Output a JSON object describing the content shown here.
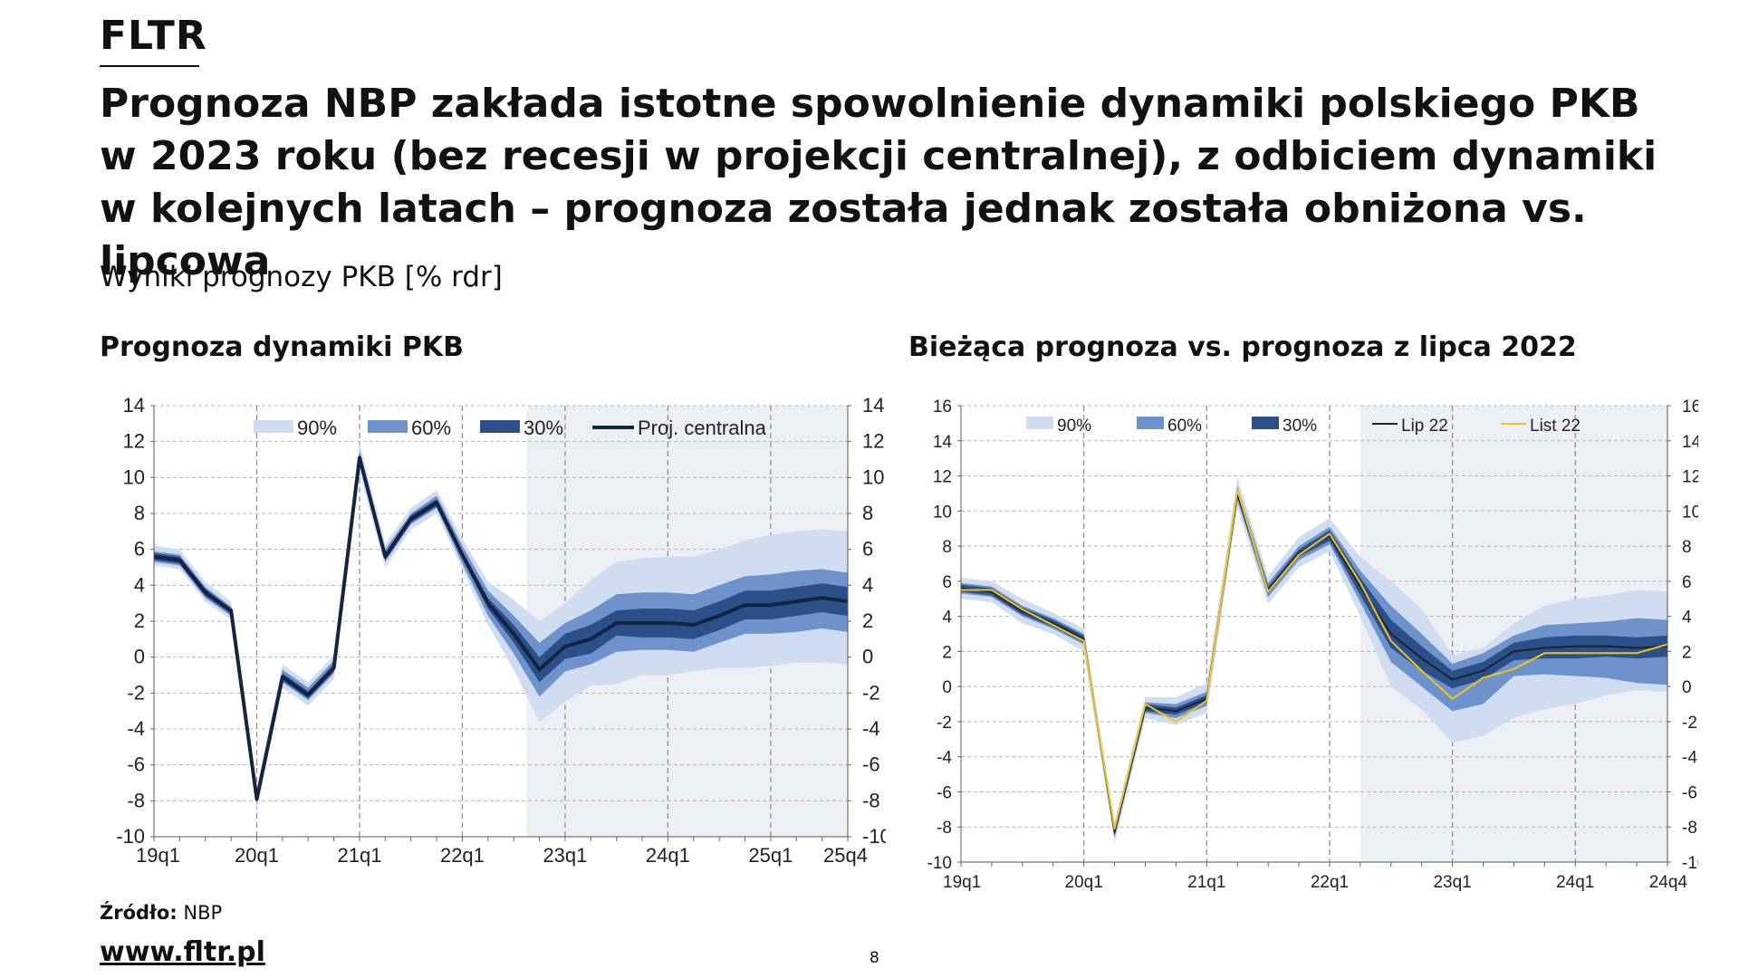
{
  "header": {
    "brand": "FLTR",
    "title": "Prognoza NBP zakłada istotne spowolnienie dynamiki polskiego PKB w 2023 roku (bez recesji w projekcji centralnej), z odbiciem dynamiki w kolejnych latach – prognoza została jednak została obniżona vs. lipcowa",
    "subtitle": "Wyniki prognozy PKB [% rdr]"
  },
  "footer": {
    "source_label": "Źródło:",
    "source_value": "NBP",
    "website": "www.fltr.pl",
    "page_number": "8"
  },
  "colors": {
    "band90": "#d0dcef",
    "band60": "#6e92cc",
    "band30": "#2a4f89",
    "central": "#14233f",
    "lip22": "#1b2233",
    "list22": "#f2c21e",
    "projection_bg": "#eceff3"
  },
  "chart_data": [
    {
      "type": "line",
      "title": "Prognoza dynamiki PKB",
      "xlabel": "",
      "ylabel": "",
      "ylim": [
        -10,
        14
      ],
      "yticks": [
        14,
        12,
        10,
        8,
        6,
        4,
        2,
        0,
        -2,
        -4,
        -6,
        -8,
        -10
      ],
      "x_tick_labels": [
        "19q1",
        "20q1",
        "21q1",
        "22q1",
        "23q1",
        "24q1",
        "25q1",
        "25q4"
      ],
      "x_tick_positions": [
        0,
        4,
        8,
        12,
        16,
        20,
        24,
        27
      ],
      "vertical_gridlines_at": [
        4,
        8,
        12,
        16,
        20,
        24
      ],
      "projection_start": 14.5,
      "legend": [
        "90%",
        "60%",
        "30%",
        "Proj. centralna"
      ],
      "legend_position": "top",
      "series": [
        {
          "name": "Proj. centralna",
          "x": [
            0,
            1,
            2,
            3,
            4,
            5,
            6,
            7,
            8,
            9,
            10,
            11,
            12,
            13,
            14,
            15,
            16,
            17,
            18,
            19,
            20,
            21,
            22,
            23,
            24,
            25,
            26,
            27
          ],
          "values": [
            5.6,
            5.4,
            3.6,
            2.6,
            -7.9,
            -1.1,
            -2.1,
            -0.6,
            11.1,
            5.6,
            7.7,
            8.6,
            5.7,
            3.0,
            1.3,
            -0.7,
            0.6,
            1.0,
            1.9,
            1.9,
            1.9,
            1.8,
            2.3,
            2.9,
            2.9,
            3.1,
            3.3,
            3.1
          ]
        }
      ],
      "bands": [
        {
          "name": "90%",
          "upper": [
            6.2,
            6.0,
            4.2,
            3.1,
            -7.3,
            -0.4,
            -1.4,
            0.1,
            11.9,
            6.3,
            8.3,
            9.3,
            6.6,
            4.2,
            3.2,
            2.0,
            3.0,
            4.3,
            5.3,
            5.5,
            5.6,
            5.6,
            6.0,
            6.5,
            6.8,
            7.0,
            7.1,
            7.0
          ],
          "lower": [
            5.1,
            4.9,
            3.1,
            2.1,
            -8.5,
            -1.7,
            -2.7,
            -1.2,
            10.3,
            5.0,
            7.1,
            8.0,
            4.9,
            1.8,
            -0.7,
            -3.6,
            -2.5,
            -1.6,
            -1.5,
            -1.0,
            -1.0,
            -0.8,
            -0.6,
            -0.6,
            -0.5,
            -0.3,
            -0.3,
            -0.4
          ]
        },
        {
          "name": "60%",
          "upper": [
            5.9,
            5.7,
            3.9,
            2.8,
            -7.6,
            -0.7,
            -1.7,
            -0.2,
            11.5,
            6.0,
            8.0,
            9.0,
            6.2,
            3.7,
            2.3,
            0.8,
            1.9,
            2.6,
            3.5,
            3.6,
            3.6,
            3.5,
            4.0,
            4.5,
            4.6,
            4.8,
            4.9,
            4.7
          ],
          "lower": [
            5.3,
            5.1,
            3.3,
            2.3,
            -8.2,
            -1.4,
            -2.4,
            -0.9,
            10.7,
            5.3,
            7.4,
            8.3,
            5.2,
            2.3,
            0.2,
            -2.2,
            -0.8,
            -0.4,
            0.3,
            0.4,
            0.4,
            0.3,
            0.8,
            1.3,
            1.3,
            1.4,
            1.6,
            1.4
          ]
        },
        {
          "name": "30%",
          "upper": [
            5.8,
            5.6,
            3.8,
            2.7,
            -7.7,
            -0.9,
            -1.9,
            -0.4,
            11.3,
            5.8,
            7.9,
            8.8,
            5.9,
            3.3,
            1.8,
            0.0,
            1.3,
            1.8,
            2.6,
            2.7,
            2.7,
            2.6,
            3.1,
            3.7,
            3.7,
            3.9,
            4.1,
            3.9
          ],
          "lower": [
            5.4,
            5.2,
            3.4,
            2.4,
            -8.1,
            -1.3,
            -2.3,
            -0.8,
            10.9,
            5.4,
            7.5,
            8.4,
            5.5,
            2.7,
            0.8,
            -1.4,
            -0.1,
            0.2,
            1.2,
            1.1,
            1.1,
            1.0,
            1.5,
            2.1,
            2.1,
            2.3,
            2.5,
            2.3
          ]
        }
      ]
    },
    {
      "type": "line",
      "title": "Bieżąca prognoza vs. prognoza z lipca 2022",
      "xlabel": "",
      "ylabel": "",
      "ylim": [
        -10,
        16
      ],
      "yticks": [
        16,
        14,
        12,
        10,
        8,
        6,
        4,
        2,
        0,
        -2,
        -4,
        -6,
        -8,
        -10
      ],
      "x_tick_labels": [
        "19q1",
        "20q1",
        "21q1",
        "22q1",
        "23q1",
        "24q1",
        "24q4"
      ],
      "x_tick_positions": [
        0,
        4,
        8,
        12,
        16,
        20,
        23
      ],
      "vertical_gridlines_at": [
        4,
        8,
        12,
        16,
        20
      ],
      "projection_start": 13.0,
      "legend": [
        "90%",
        "60%",
        "30%",
        "Lip 22",
        "List 22"
      ],
      "legend_position": "top",
      "series": [
        {
          "name": "Lip 22",
          "x": [
            0,
            1,
            2,
            3,
            4,
            5,
            6,
            7,
            8,
            9,
            10,
            11,
            12,
            13,
            14,
            15,
            16,
            17,
            18,
            19,
            20,
            21,
            22,
            23
          ],
          "values": [
            5.6,
            5.4,
            4.3,
            3.6,
            2.7,
            -8.3,
            -1.2,
            -1.4,
            -0.7,
            11.0,
            5.5,
            7.6,
            8.6,
            5.7,
            3.0,
            1.6,
            0.4,
            0.9,
            2.0,
            2.2,
            2.3,
            2.3,
            2.2,
            2.3
          ]
        },
        {
          "name": "List 22",
          "x": [
            0,
            1,
            2,
            3,
            4,
            5,
            6,
            7,
            8,
            9,
            10,
            11,
            12,
            13,
            14,
            15,
            16,
            17,
            18,
            19,
            20,
            21,
            22,
            23
          ],
          "values": [
            5.5,
            5.5,
            4.4,
            3.5,
            2.6,
            -8.1,
            -1.0,
            -2.0,
            -0.8,
            11.2,
            5.4,
            7.5,
            8.7,
            5.9,
            2.6,
            0.9,
            -0.7,
            0.5,
            1.0,
            1.9,
            1.9,
            1.9,
            1.9,
            2.4
          ]
        }
      ],
      "bands": [
        {
          "name": "90%",
          "upper": [
            6.2,
            6.0,
            5.0,
            4.2,
            3.3,
            -7.7,
            -0.6,
            -0.6,
            0.2,
            11.9,
            6.3,
            8.5,
            9.6,
            7.4,
            6.0,
            4.4,
            1.8,
            2.2,
            3.6,
            4.6,
            5.0,
            5.2,
            5.5,
            5.4
          ],
          "lower": [
            5.0,
            4.8,
            3.6,
            3.0,
            2.0,
            -8.9,
            -1.8,
            -2.2,
            -1.5,
            10.2,
            4.7,
            6.8,
            7.7,
            4.0,
            0.0,
            -1.3,
            -3.2,
            -2.8,
            -1.8,
            -1.3,
            -1.0,
            -0.5,
            -0.2,
            -0.3
          ]
        },
        {
          "name": "60%",
          "upper": [
            5.9,
            5.7,
            4.6,
            3.9,
            3.0,
            -8.0,
            -0.9,
            -1.0,
            -0.3,
            11.4,
            5.9,
            8.0,
            9.1,
            6.6,
            4.6,
            3.0,
            1.3,
            1.9,
            2.9,
            3.5,
            3.6,
            3.7,
            3.9,
            3.8
          ],
          "lower": [
            5.3,
            5.1,
            4.0,
            3.3,
            2.4,
            -8.6,
            -1.5,
            -1.8,
            -1.1,
            10.6,
            5.1,
            7.2,
            8.1,
            4.8,
            1.4,
            0.0,
            -1.4,
            -1.0,
            0.6,
            0.7,
            0.6,
            0.5,
            0.2,
            0.1
          ]
        },
        {
          "name": "30%",
          "upper": [
            5.8,
            5.6,
            4.5,
            3.8,
            2.9,
            -8.1,
            -1.0,
            -1.2,
            -0.5,
            11.2,
            5.7,
            7.8,
            8.9,
            6.2,
            3.8,
            2.3,
            0.9,
            1.4,
            2.5,
            2.8,
            2.9,
            2.9,
            2.8,
            2.9
          ],
          "lower": [
            5.4,
            5.2,
            4.1,
            3.4,
            2.5,
            -8.5,
            -1.4,
            -1.6,
            -0.9,
            10.8,
            5.3,
            7.4,
            8.3,
            5.2,
            2.2,
            0.9,
            -0.1,
            0.4,
            1.5,
            1.6,
            1.6,
            1.7,
            1.6,
            1.7
          ]
        }
      ]
    }
  ]
}
